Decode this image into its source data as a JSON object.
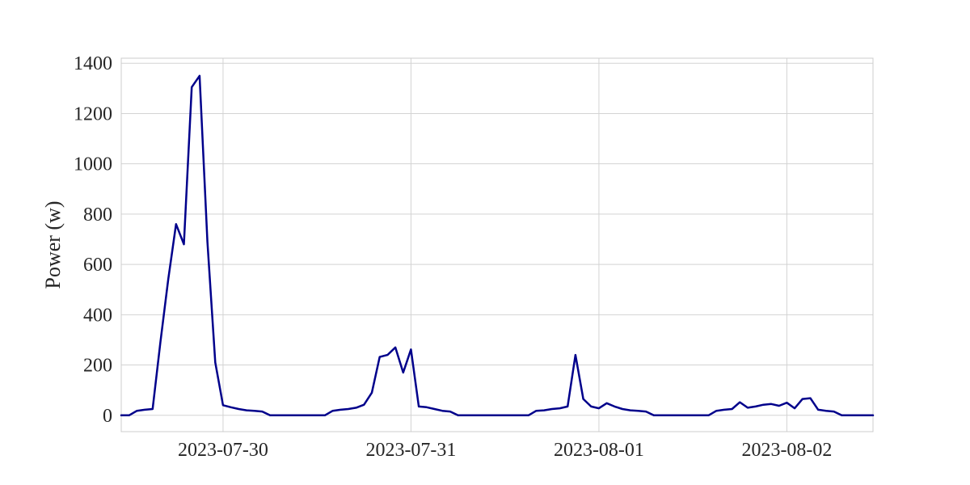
{
  "chart_data": {
    "type": "line",
    "title": "",
    "xlabel": "",
    "ylabel": "Power (w)",
    "ylim": [
      -65,
      1420
    ],
    "xlim": [
      "2023-07-29T11:00",
      "2023-08-02T11:00"
    ],
    "y_ticks": [
      0,
      200,
      400,
      600,
      800,
      1000,
      1200,
      1400
    ],
    "x_ticks": [
      "2023-07-30",
      "2023-07-31",
      "2023-08-01",
      "2023-08-02"
    ],
    "grid": true,
    "legend": "none",
    "series": [
      {
        "color": "#00008b",
        "points": [
          [
            "2023-07-29T11:00",
            0
          ],
          [
            "2023-07-29T12:00",
            0
          ],
          [
            "2023-07-29T13:00",
            18
          ],
          [
            "2023-07-29T14:00",
            22
          ],
          [
            "2023-07-29T15:00",
            25
          ],
          [
            "2023-07-29T16:00",
            290
          ],
          [
            "2023-07-29T17:00",
            540
          ],
          [
            "2023-07-29T18:00",
            760
          ],
          [
            "2023-07-29T19:00",
            680
          ],
          [
            "2023-07-29T20:00",
            1305
          ],
          [
            "2023-07-29T21:00",
            1350
          ],
          [
            "2023-07-29T22:00",
            690
          ],
          [
            "2023-07-29T23:00",
            210
          ],
          [
            "2023-07-30T00:00",
            40
          ],
          [
            "2023-07-30T01:00",
            32
          ],
          [
            "2023-07-30T02:00",
            25
          ],
          [
            "2023-07-30T03:00",
            20
          ],
          [
            "2023-07-30T04:00",
            18
          ],
          [
            "2023-07-30T05:00",
            15
          ],
          [
            "2023-07-30T06:00",
            0
          ],
          [
            "2023-07-30T07:00",
            0
          ],
          [
            "2023-07-30T08:00",
            0
          ],
          [
            "2023-07-30T09:00",
            0
          ],
          [
            "2023-07-30T10:00",
            0
          ],
          [
            "2023-07-30T11:00",
            0
          ],
          [
            "2023-07-30T12:00",
            0
          ],
          [
            "2023-07-30T13:00",
            0
          ],
          [
            "2023-07-30T14:00",
            18
          ],
          [
            "2023-07-30T15:00",
            22
          ],
          [
            "2023-07-30T16:00",
            25
          ],
          [
            "2023-07-30T17:00",
            30
          ],
          [
            "2023-07-30T18:00",
            42
          ],
          [
            "2023-07-30T19:00",
            90
          ],
          [
            "2023-07-30T20:00",
            232
          ],
          [
            "2023-07-30T21:00",
            240
          ],
          [
            "2023-07-30T22:00",
            270
          ],
          [
            "2023-07-30T23:00",
            170
          ],
          [
            "2023-07-31T00:00",
            262
          ],
          [
            "2023-07-31T01:00",
            35
          ],
          [
            "2023-07-31T02:00",
            32
          ],
          [
            "2023-07-31T03:00",
            25
          ],
          [
            "2023-07-31T04:00",
            18
          ],
          [
            "2023-07-31T05:00",
            15
          ],
          [
            "2023-07-31T06:00",
            0
          ],
          [
            "2023-07-31T07:00",
            0
          ],
          [
            "2023-07-31T08:00",
            0
          ],
          [
            "2023-07-31T09:00",
            0
          ],
          [
            "2023-07-31T10:00",
            0
          ],
          [
            "2023-07-31T11:00",
            0
          ],
          [
            "2023-07-31T12:00",
            0
          ],
          [
            "2023-07-31T13:00",
            0
          ],
          [
            "2023-07-31T14:00",
            0
          ],
          [
            "2023-07-31T15:00",
            0
          ],
          [
            "2023-07-31T16:00",
            18
          ],
          [
            "2023-07-31T17:00",
            20
          ],
          [
            "2023-07-31T18:00",
            25
          ],
          [
            "2023-07-31T19:00",
            28
          ],
          [
            "2023-07-31T20:00",
            35
          ],
          [
            "2023-07-31T21:00",
            240
          ],
          [
            "2023-07-31T22:00",
            65
          ],
          [
            "2023-07-31T23:00",
            35
          ],
          [
            "2023-08-01T00:00",
            28
          ],
          [
            "2023-08-01T01:00",
            48
          ],
          [
            "2023-08-01T02:00",
            35
          ],
          [
            "2023-08-01T03:00",
            25
          ],
          [
            "2023-08-01T04:00",
            20
          ],
          [
            "2023-08-01T05:00",
            18
          ],
          [
            "2023-08-01T06:00",
            15
          ],
          [
            "2023-08-01T07:00",
            0
          ],
          [
            "2023-08-01T08:00",
            0
          ],
          [
            "2023-08-01T09:00",
            0
          ],
          [
            "2023-08-01T10:00",
            0
          ],
          [
            "2023-08-01T11:00",
            0
          ],
          [
            "2023-08-01T12:00",
            0
          ],
          [
            "2023-08-01T13:00",
            0
          ],
          [
            "2023-08-01T14:00",
            0
          ],
          [
            "2023-08-01T15:00",
            18
          ],
          [
            "2023-08-01T16:00",
            22
          ],
          [
            "2023-08-01T17:00",
            25
          ],
          [
            "2023-08-01T18:00",
            52
          ],
          [
            "2023-08-01T19:00",
            30
          ],
          [
            "2023-08-01T20:00",
            35
          ],
          [
            "2023-08-01T21:00",
            42
          ],
          [
            "2023-08-01T22:00",
            45
          ],
          [
            "2023-08-01T23:00",
            38
          ],
          [
            "2023-08-02T00:00",
            50
          ],
          [
            "2023-08-02T01:00",
            28
          ],
          [
            "2023-08-02T02:00",
            65
          ],
          [
            "2023-08-02T03:00",
            68
          ],
          [
            "2023-08-02T04:00",
            22
          ],
          [
            "2023-08-02T05:00",
            18
          ],
          [
            "2023-08-02T06:00",
            15
          ],
          [
            "2023-08-02T07:00",
            0
          ],
          [
            "2023-08-02T08:00",
            0
          ],
          [
            "2023-08-02T09:00",
            0
          ],
          [
            "2023-08-02T10:00",
            0
          ],
          [
            "2023-08-02T11:00",
            0
          ]
        ]
      }
    ]
  }
}
